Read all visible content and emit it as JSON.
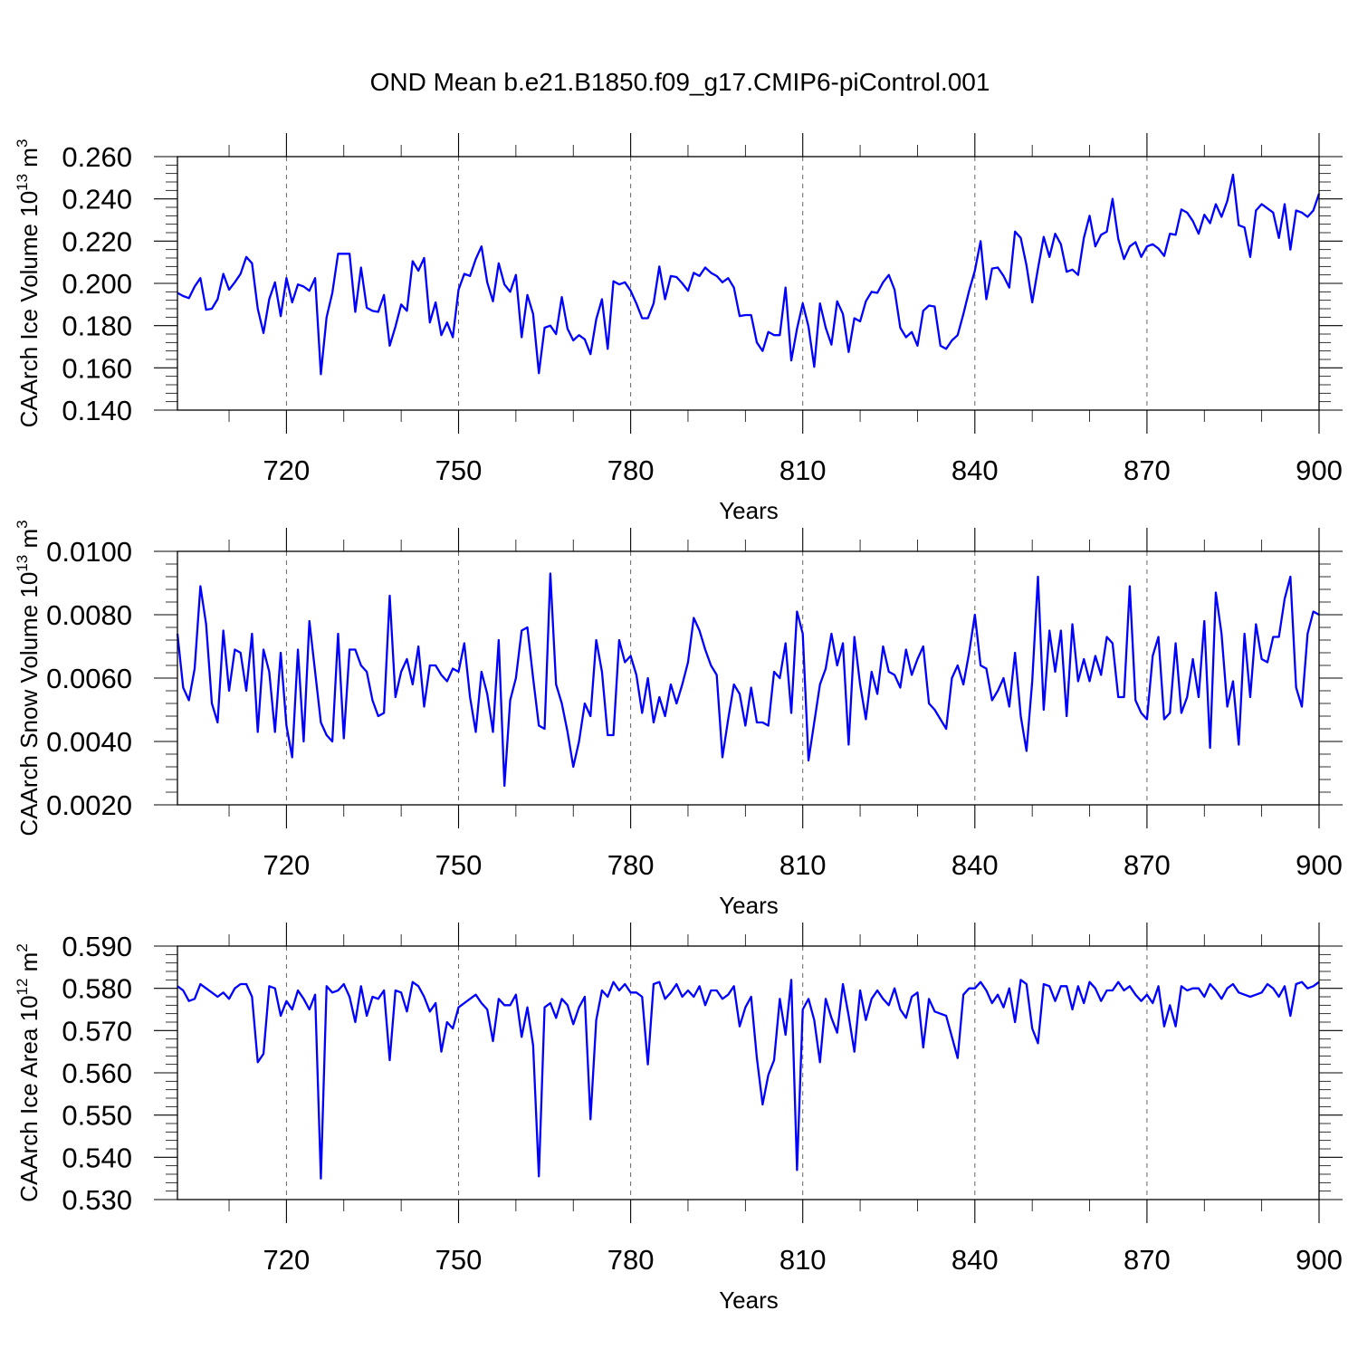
{
  "title": "OND Mean b.e21.B1850.f09_g17.CMIP6-piControl.001",
  "style": {
    "line_color": "#0000ff",
    "grid_color": "#666666",
    "background": "#ffffff"
  },
  "chart_data": [
    {
      "type": "line",
      "ylabel": {
        "prefix": "CAArch Ice Volume 10",
        "exp": "13",
        "unit": " m",
        "unit_exp": "3"
      },
      "xlabel": "Years",
      "xlim": [
        701,
        900
      ],
      "ylim": [
        0.14,
        0.26
      ],
      "xticks": [
        "720",
        "750",
        "780",
        "810",
        "840",
        "870",
        "900"
      ],
      "yticks": [
        "0.140",
        "0.160",
        "0.180",
        "0.200",
        "0.220",
        "0.240",
        "0.260"
      ],
      "grid": "vertical dashed at major x ticks",
      "x_start": 701,
      "series": [
        {
          "values": [
            0.1955,
            0.194,
            0.193,
            0.1985,
            0.2025,
            0.1875,
            0.188,
            0.1925,
            0.2045,
            0.197,
            0.2005,
            0.2045,
            0.2125,
            0.2095,
            0.188,
            0.1765,
            0.1925,
            0.2005,
            0.1845,
            0.2025,
            0.191,
            0.1995,
            0.1985,
            0.1965,
            0.2025,
            0.157,
            0.184,
            0.1955,
            0.214,
            0.214,
            0.214,
            0.1865,
            0.2075,
            0.1885,
            0.187,
            0.1865,
            0.1945,
            0.1705,
            0.1795,
            0.19,
            0.187,
            0.2105,
            0.206,
            0.212,
            0.1815,
            0.191,
            0.1755,
            0.1815,
            0.1745,
            0.197,
            0.2045,
            0.2035,
            0.2115,
            0.2175,
            0.2005,
            0.1915,
            0.2095,
            0.1995,
            0.196,
            0.204,
            0.1745,
            0.1945,
            0.1855,
            0.1575,
            0.179,
            0.18,
            0.176,
            0.1935,
            0.1785,
            0.173,
            0.1755,
            0.1735,
            0.1665,
            0.183,
            0.1925,
            0.169,
            0.201,
            0.1995,
            0.2005,
            0.1965,
            0.1905,
            0.1835,
            0.1835,
            0.1905,
            0.208,
            0.1925,
            0.2035,
            0.203,
            0.2,
            0.1965,
            0.205,
            0.2035,
            0.2075,
            0.205,
            0.2035,
            0.2005,
            0.2025,
            0.198,
            0.1845,
            0.185,
            0.185,
            0.172,
            0.168,
            0.177,
            0.1755,
            0.1755,
            0.198,
            0.1635,
            0.1785,
            0.1905,
            0.1795,
            0.1605,
            0.1905,
            0.179,
            0.171,
            0.1915,
            0.1855,
            0.1675,
            0.1835,
            0.182,
            0.1915,
            0.196,
            0.1955,
            0.2005,
            0.204,
            0.197,
            0.179,
            0.1745,
            0.177,
            0.1705,
            0.187,
            0.1895,
            0.189,
            0.1705,
            0.169,
            0.173,
            0.1755,
            0.1855,
            0.1965,
            0.206,
            0.22,
            0.1925,
            0.207,
            0.2075,
            0.2035,
            0.198,
            0.2245,
            0.2215,
            0.2085,
            0.191,
            0.207,
            0.222,
            0.2125,
            0.2235,
            0.2185,
            0.2055,
            0.2065,
            0.204,
            0.2215,
            0.232,
            0.2175,
            0.223,
            0.2245,
            0.24,
            0.221,
            0.2115,
            0.2175,
            0.2195,
            0.2125,
            0.2175,
            0.2185,
            0.2165,
            0.213,
            0.2235,
            0.223,
            0.235,
            0.2335,
            0.2295,
            0.2235,
            0.2325,
            0.2285,
            0.2375,
            0.2315,
            0.239,
            0.2515,
            0.2275,
            0.2265,
            0.2125,
            0.2345,
            0.2375,
            0.2355,
            0.2335,
            0.2215,
            0.2375,
            0.216,
            0.2345,
            0.2335,
            0.2315,
            0.2345,
            0.2425
          ]
        }
      ]
    },
    {
      "type": "line",
      "ylabel": {
        "prefix": "CAArch Snow Volume 10",
        "exp": "13",
        "unit": " m",
        "unit_exp": "3"
      },
      "xlabel": "Years",
      "xlim": [
        701,
        900
      ],
      "ylim": [
        0.002,
        0.01
      ],
      "xticks": [
        "720",
        "750",
        "780",
        "810",
        "840",
        "870",
        "900"
      ],
      "yticks": [
        "0.0020",
        "0.0040",
        "0.0060",
        "0.0080",
        "0.0100"
      ],
      "grid": "vertical dashed at major x ticks",
      "x_start": 701,
      "series": [
        {
          "values": [
            0.0074,
            0.0057,
            0.0053,
            0.0063,
            0.0089,
            0.0077,
            0.0052,
            0.0046,
            0.0075,
            0.0056,
            0.0069,
            0.0068,
            0.0056,
            0.0074,
            0.0043,
            0.0069,
            0.0062,
            0.0043,
            0.0068,
            0.0045,
            0.0035,
            0.0069,
            0.004,
            0.0078,
            0.0062,
            0.0046,
            0.0042,
            0.004,
            0.0074,
            0.0041,
            0.0069,
            0.0069,
            0.0064,
            0.0062,
            0.0053,
            0.0048,
            0.0049,
            0.0086,
            0.0054,
            0.0062,
            0.0066,
            0.0058,
            0.007,
            0.0051,
            0.0064,
            0.0064,
            0.0061,
            0.0059,
            0.0063,
            0.0062,
            0.0071,
            0.0054,
            0.0043,
            0.0062,
            0.0055,
            0.0043,
            0.0072,
            0.0026,
            0.0053,
            0.006,
            0.0075,
            0.0076,
            0.006,
            0.0045,
            0.0044,
            0.0093,
            0.0058,
            0.0052,
            0.0043,
            0.0032,
            0.004,
            0.0052,
            0.0048,
            0.0072,
            0.0062,
            0.0042,
            0.0042,
            0.0072,
            0.0065,
            0.0067,
            0.0061,
            0.0049,
            0.006,
            0.0046,
            0.0054,
            0.0048,
            0.0058,
            0.0052,
            0.0058,
            0.0065,
            0.0079,
            0.0075,
            0.0069,
            0.0064,
            0.0061,
            0.0035,
            0.0047,
            0.0058,
            0.0055,
            0.0045,
            0.0057,
            0.0046,
            0.0046,
            0.0045,
            0.0062,
            0.006,
            0.0071,
            0.0049,
            0.0081,
            0.0074,
            0.0034,
            0.0046,
            0.0058,
            0.0063,
            0.0074,
            0.0064,
            0.0071,
            0.0039,
            0.0073,
            0.0058,
            0.0047,
            0.0062,
            0.0055,
            0.007,
            0.0062,
            0.0061,
            0.0057,
            0.0069,
            0.0061,
            0.0066,
            0.007,
            0.0052,
            0.005,
            0.0047,
            0.0044,
            0.006,
            0.0064,
            0.0058,
            0.0068,
            0.008,
            0.0064,
            0.0063,
            0.0053,
            0.0056,
            0.006,
            0.0051,
            0.0068,
            0.0048,
            0.0037,
            0.0059,
            0.0092,
            0.005,
            0.0075,
            0.0062,
            0.0075,
            0.0048,
            0.0077,
            0.0059,
            0.0066,
            0.0059,
            0.0067,
            0.0061,
            0.0073,
            0.0071,
            0.0054,
            0.0054,
            0.0089,
            0.0053,
            0.0049,
            0.0047,
            0.0067,
            0.0073,
            0.0047,
            0.0049,
            0.0071,
            0.0049,
            0.0054,
            0.0066,
            0.0054,
            0.0078,
            0.0038,
            0.0087,
            0.0074,
            0.0051,
            0.0059,
            0.0039,
            0.0074,
            0.0054,
            0.0077,
            0.0066,
            0.0065,
            0.0073,
            0.0073,
            0.0085,
            0.0092,
            0.0057,
            0.0051,
            0.0074,
            0.0081,
            0.008
          ]
        }
      ]
    },
    {
      "type": "line",
      "ylabel": {
        "prefix": "CAArch Ice Area 10",
        "exp": "12",
        "unit": " m",
        "unit_exp": "2"
      },
      "xlabel": "Years",
      "xlim": [
        701,
        900
      ],
      "ylim": [
        0.53,
        0.59
      ],
      "xticks": [
        "720",
        "750",
        "780",
        "810",
        "840",
        "870",
        "900"
      ],
      "yticks": [
        "0.530",
        "0.540",
        "0.550",
        "0.560",
        "0.570",
        "0.580",
        "0.590"
      ],
      "grid": "vertical dashed at major x ticks",
      "x_start": 701,
      "series": [
        {
          "values": [
            0.5805,
            0.5795,
            0.577,
            0.5775,
            0.581,
            0.58,
            0.579,
            0.578,
            0.579,
            0.5775,
            0.58,
            0.581,
            0.581,
            0.578,
            0.5625,
            0.5645,
            0.5805,
            0.58,
            0.5735,
            0.577,
            0.575,
            0.5795,
            0.5775,
            0.575,
            0.5785,
            0.535,
            0.5805,
            0.579,
            0.5795,
            0.581,
            0.578,
            0.572,
            0.5805,
            0.5735,
            0.578,
            0.5775,
            0.5795,
            0.563,
            0.5795,
            0.579,
            0.5745,
            0.5815,
            0.5805,
            0.578,
            0.5745,
            0.5765,
            0.565,
            0.572,
            0.5705,
            0.5755,
            0.5765,
            0.5775,
            0.5785,
            0.5765,
            0.575,
            0.5675,
            0.5775,
            0.576,
            0.576,
            0.5785,
            0.5685,
            0.5755,
            0.5665,
            0.5355,
            0.5755,
            0.5765,
            0.573,
            0.5775,
            0.576,
            0.5715,
            0.5755,
            0.578,
            0.549,
            0.5725,
            0.5795,
            0.578,
            0.5815,
            0.5795,
            0.581,
            0.579,
            0.579,
            0.578,
            0.562,
            0.581,
            0.5815,
            0.5775,
            0.579,
            0.581,
            0.578,
            0.5795,
            0.578,
            0.5805,
            0.576,
            0.5795,
            0.5795,
            0.5775,
            0.5785,
            0.5805,
            0.571,
            0.5755,
            0.578,
            0.5635,
            0.5525,
            0.5595,
            0.563,
            0.5775,
            0.569,
            0.582,
            0.537,
            0.575,
            0.5775,
            0.5725,
            0.5625,
            0.5775,
            0.573,
            0.5695,
            0.581,
            0.5735,
            0.565,
            0.5795,
            0.5725,
            0.5775,
            0.5795,
            0.5775,
            0.576,
            0.58,
            0.575,
            0.573,
            0.578,
            0.579,
            0.566,
            0.5775,
            0.5745,
            0.574,
            0.5735,
            0.5685,
            0.5635,
            0.5785,
            0.58,
            0.58,
            0.5815,
            0.5795,
            0.5765,
            0.5785,
            0.5755,
            0.58,
            0.572,
            0.582,
            0.581,
            0.5705,
            0.567,
            0.581,
            0.5805,
            0.577,
            0.5805,
            0.5805,
            0.575,
            0.5805,
            0.5765,
            0.5815,
            0.58,
            0.577,
            0.5795,
            0.5795,
            0.5815,
            0.5795,
            0.5805,
            0.5785,
            0.577,
            0.5785,
            0.5765,
            0.5805,
            0.571,
            0.576,
            0.571,
            0.5805,
            0.5795,
            0.58,
            0.58,
            0.578,
            0.581,
            0.5795,
            0.5775,
            0.58,
            0.581,
            0.579,
            0.5785,
            0.578,
            0.5785,
            0.579,
            0.581,
            0.58,
            0.578,
            0.5805,
            0.5735,
            0.581,
            0.5815,
            0.58,
            0.5805,
            0.5815
          ]
        }
      ]
    }
  ]
}
